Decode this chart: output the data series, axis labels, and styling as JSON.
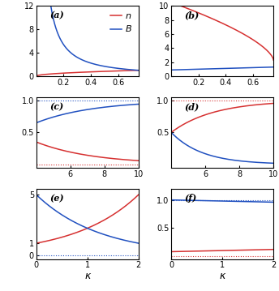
{
  "panels": [
    {
      "label": "(a)",
      "row": 0,
      "col": 0,
      "xmin": 0.0,
      "xmax": 0.75,
      "ymin": 0,
      "ymax": 12,
      "yticks": [
        0,
        4,
        8,
        12
      ],
      "xticks": [
        0.2,
        0.4,
        0.6
      ],
      "dashed_red": null,
      "dashed_blue": null,
      "legend": true
    },
    {
      "label": "(b)",
      "row": 0,
      "col": 1,
      "xmin": 0.0,
      "xmax": 0.75,
      "ymin": 0,
      "ymax": 10,
      "yticks": [
        0,
        2,
        4,
        6,
        8,
        10
      ],
      "xticks": [
        0.2,
        0.4,
        0.6
      ],
      "dashed_red": null,
      "dashed_blue": null,
      "legend": false
    },
    {
      "label": "(c)",
      "row": 1,
      "col": 0,
      "xmin": 4.0,
      "xmax": 10.0,
      "ymin": -0.05,
      "ymax": 1.05,
      "yticks": [
        0.5,
        1.0
      ],
      "xticks": [
        6,
        8,
        10
      ],
      "dashed_red": 0.0,
      "dashed_blue": 1.0,
      "legend": false
    },
    {
      "label": "(d)",
      "row": 1,
      "col": 1,
      "xmin": 4.0,
      "xmax": 10.0,
      "ymin": -0.05,
      "ymax": 1.05,
      "yticks": [
        0.5,
        1.0
      ],
      "xticks": [
        6,
        8,
        10
      ],
      "dashed_red": 1.0,
      "dashed_blue": null,
      "legend": false
    },
    {
      "label": "(e)",
      "row": 2,
      "col": 0,
      "xmin": 0.0,
      "xmax": 2.0,
      "ymin": -0.3,
      "ymax": 5.5,
      "yticks": [
        0,
        1,
        5
      ],
      "xticks": [
        0,
        1,
        2
      ],
      "dashed_red": null,
      "dashed_blue": 0.0,
      "legend": false
    },
    {
      "label": "(f)",
      "row": 2,
      "col": 1,
      "xmin": 0.0,
      "xmax": 2.0,
      "ymin": -0.05,
      "ymax": 1.2,
      "yticks": [
        0.5,
        1.0
      ],
      "xticks": [
        0,
        1,
        2
      ],
      "dashed_red": 0.0,
      "dashed_blue": 1.0,
      "legend": false
    }
  ],
  "color_red": "#d63030",
  "color_blue": "#2050c0",
  "xlabel": "κ",
  "legend_n": "n",
  "legend_B": "B"
}
